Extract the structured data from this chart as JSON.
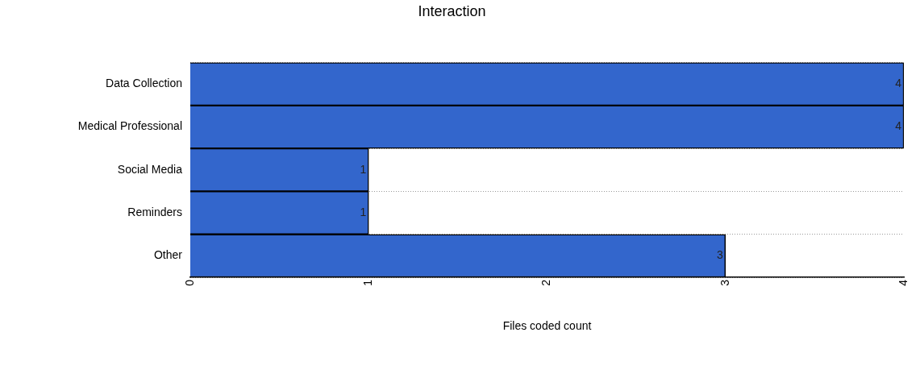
{
  "chart_data": {
    "type": "bar",
    "orientation": "horizontal",
    "title": "Interaction",
    "xlabel": "Files coded count",
    "categories": [
      "Data Collection",
      "Medical Professional",
      "Social Media",
      "Reminders",
      "Other"
    ],
    "values": [
      4,
      4,
      1,
      1,
      3
    ],
    "color": "#3366cc",
    "xlim": [
      0,
      4
    ],
    "xticks": [
      0,
      1,
      2,
      3,
      4
    ],
    "grid": "y",
    "data_labels": true,
    "legend": false
  }
}
